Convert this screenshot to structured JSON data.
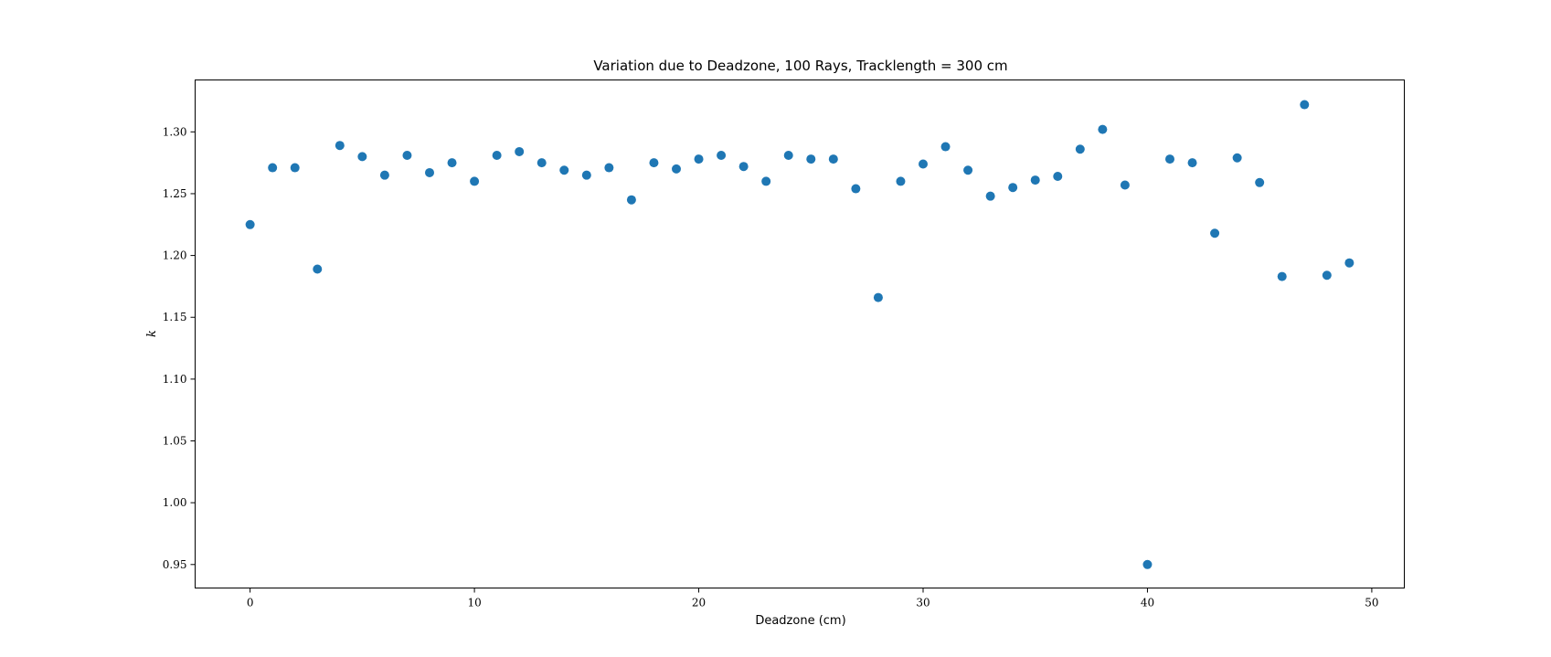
{
  "chart_data": {
    "type": "scatter",
    "title": "Variation due to Deadzone, 100 Rays, Tracklength = 300 cm",
    "xlabel": "Deadzone (cm)",
    "ylabel": "k",
    "xlim": [
      -2.45,
      51.45
    ],
    "ylim": [
      0.931,
      1.342
    ],
    "xticks": [
      0,
      10,
      20,
      30,
      40,
      50
    ],
    "yticks": [
      0.95,
      1.0,
      1.05,
      1.1,
      1.15,
      1.2,
      1.25,
      1.3
    ],
    "xtick_labels": [
      "0",
      "10",
      "20",
      "30",
      "40",
      "50"
    ],
    "ytick_labels": [
      "0.95",
      "1.00",
      "1.05",
      "1.10",
      "1.15",
      "1.20",
      "1.25",
      "1.30"
    ],
    "grid": false,
    "color": "#1f77b4",
    "x": [
      0,
      1,
      2,
      3,
      4,
      5,
      6,
      7,
      8,
      9,
      10,
      11,
      12,
      13,
      14,
      15,
      16,
      17,
      18,
      19,
      20,
      21,
      22,
      23,
      24,
      25,
      26,
      27,
      28,
      29,
      30,
      31,
      32,
      33,
      34,
      35,
      36,
      37,
      38,
      39,
      40,
      41,
      42,
      43,
      44,
      45,
      46,
      47,
      48,
      49
    ],
    "y": [
      1.225,
      1.271,
      1.271,
      1.189,
      1.289,
      1.28,
      1.265,
      1.281,
      1.267,
      1.275,
      1.26,
      1.281,
      1.284,
      1.275,
      1.269,
      1.265,
      1.271,
      1.245,
      1.275,
      1.27,
      1.278,
      1.281,
      1.272,
      1.26,
      1.281,
      1.278,
      1.278,
      1.254,
      1.166,
      1.26,
      1.274,
      1.288,
      1.269,
      1.248,
      1.255,
      1.261,
      1.264,
      1.286,
      1.302,
      1.257,
      0.95,
      1.278,
      1.275,
      1.218,
      1.279,
      1.259,
      1.183,
      1.322,
      1.184,
      1.194
    ]
  }
}
